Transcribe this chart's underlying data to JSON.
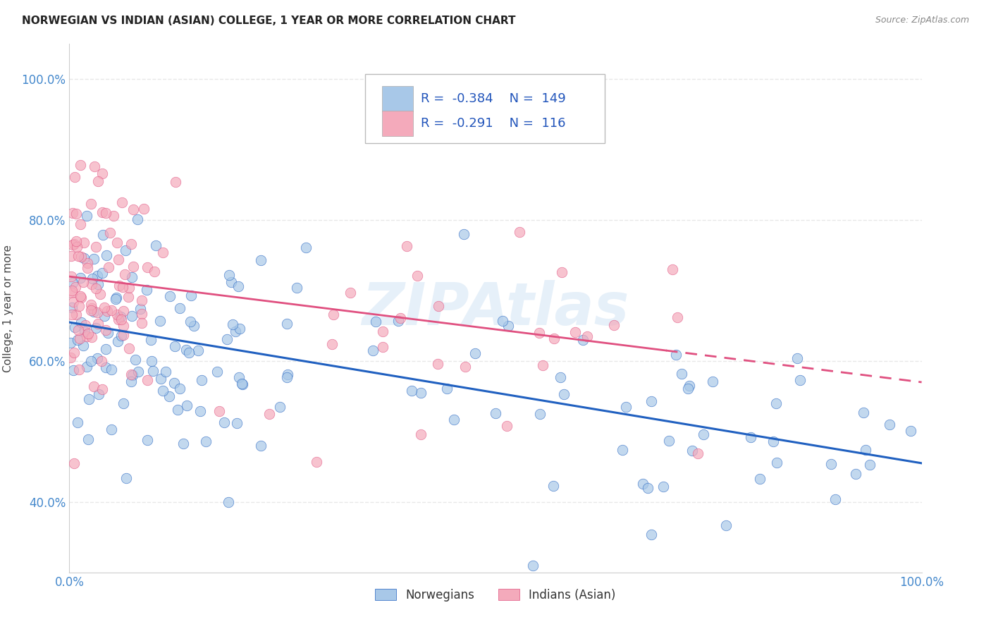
{
  "title": "NORWEGIAN VS INDIAN (ASIAN) COLLEGE, 1 YEAR OR MORE CORRELATION CHART",
  "source": "Source: ZipAtlas.com",
  "ylabel": "College, 1 year or more",
  "legend_label1": "Norwegians",
  "legend_label2": "Indians (Asian)",
  "r1": "-0.384",
  "n1": "149",
  "r2": "-0.291",
  "n2": "116",
  "color_blue": "#A8C8E8",
  "color_pink": "#F4AABB",
  "line_blue": "#2060C0",
  "line_pink": "#E05080",
  "background": "#FFFFFF",
  "watermark": "ZIPAtlas",
  "xmin": 0,
  "xmax": 100,
  "ymin": 30,
  "ymax": 105,
  "grid_color": "#E8E8E8",
  "nor_line_y0": 65.5,
  "nor_line_y100": 45.5,
  "ind_line_y0": 72.0,
  "ind_line_y100": 57.0,
  "ind_data_xmax": 70
}
